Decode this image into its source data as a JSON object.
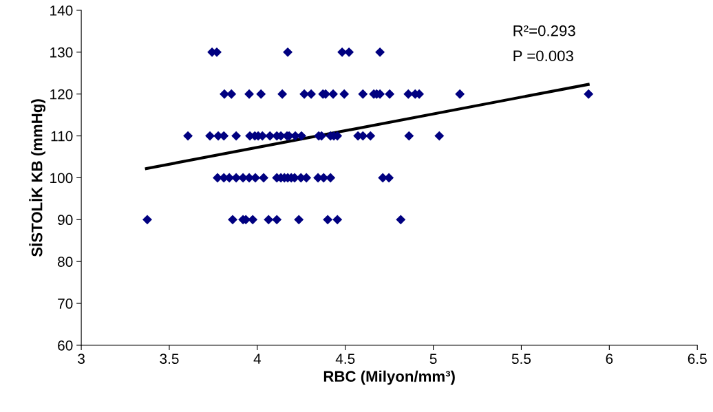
{
  "chart_data": {
    "type": "scatter",
    "xlabel": "RBC (Milyon/mm³)",
    "ylabel": "SİSTOLİK KB (mmHg)",
    "xlim": [
      3,
      6.5
    ],
    "xticks": [
      3,
      3.5,
      4,
      4.5,
      5,
      5.5,
      6,
      6.5
    ],
    "ylim": [
      60,
      140
    ],
    "yticks": [
      60,
      70,
      80,
      90,
      100,
      110,
      120,
      130,
      140
    ],
    "grid": false,
    "legend": false,
    "marker": "diamond",
    "annotations": [
      "R²=0.293",
      "P =0.003"
    ],
    "series": [
      {
        "color": "#000080",
        "x": [
          3.743,
          3.77,
          4.173,
          4.482,
          4.521,
          4.697,
          3.813,
          3.853,
          3.954,
          4.021,
          4.142,
          4.267,
          4.306,
          4.373,
          4.388,
          4.431,
          4.494,
          4.6,
          4.662,
          4.678,
          4.697,
          4.752,
          4.858,
          4.897,
          4.92,
          5.151,
          5.882,
          3.606,
          3.731,
          3.778,
          3.81,
          3.88,
          3.958,
          3.986,
          4.005,
          4.029,
          4.072,
          4.111,
          4.134,
          4.169,
          4.181,
          4.216,
          4.251,
          4.349,
          4.365,
          4.416,
          4.435,
          4.455,
          4.572,
          4.6,
          4.643,
          4.862,
          5.034,
          3.774,
          3.81,
          3.841,
          3.88,
          3.919,
          3.954,
          3.989,
          4.036,
          4.111,
          4.134,
          4.154,
          4.173,
          4.193,
          4.212,
          4.248,
          4.279,
          4.345,
          4.377,
          4.416,
          4.713,
          4.748,
          3.375,
          3.86,
          3.919,
          3.935,
          3.974,
          4.064,
          4.111,
          4.236,
          4.4,
          4.455,
          4.815
        ],
        "values": [
          130,
          130,
          130,
          130,
          130,
          130,
          120,
          120,
          120,
          120,
          120,
          120,
          120,
          120,
          120,
          120,
          120,
          120,
          120,
          120,
          120,
          120,
          120,
          120,
          120,
          120,
          120,
          110,
          110,
          110,
          110,
          110,
          110,
          110,
          110,
          110,
          110,
          110,
          110,
          110,
          110,
          110,
          110,
          110,
          110,
          110,
          110,
          110,
          110,
          110,
          110,
          110,
          110,
          100,
          100,
          100,
          100,
          100,
          100,
          100,
          100,
          100,
          100,
          100,
          100,
          100,
          100,
          100,
          100,
          100,
          100,
          100,
          100,
          100,
          90,
          90,
          90,
          90,
          90,
          90,
          90,
          90,
          90,
          90,
          90
        ]
      },
      {
        "type": "line",
        "color": "#000000",
        "marker": "none",
        "line_style": "solid",
        "x": [
          3.37,
          5.88
        ],
        "values": [
          102.2,
          122.3
        ]
      }
    ]
  }
}
